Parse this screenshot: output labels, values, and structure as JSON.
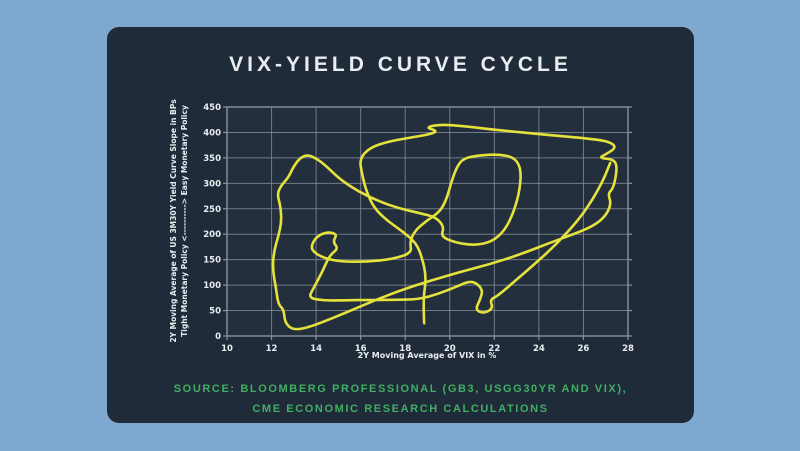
{
  "colors": {
    "background": "#7fa8d1",
    "card": "#1f2b39",
    "plot_background": "#242f3e",
    "grid": "#8a93a0",
    "axis_text": "#e9edf1",
    "curve": "#e5e33b",
    "source_text": "#41ae63",
    "title_text": "#e9edf1"
  },
  "card": {
    "title": "VIX-YIELD CURVE CYCLE"
  },
  "source": {
    "line1": "SOURCE: BLOOMBERG PROFESSIONAL (GB3, USGG30YR AND VIX),",
    "line2": "CME ECONOMIC RESEARCH CALCULATIONS"
  },
  "chart_data": {
    "type": "line",
    "title": "VIX-YIELD CURVE CYCLE",
    "xlabel": "2Y Moving Average of VIX in %",
    "ylabel_line1": "2Y Moving Average of US 3M30Y Yield Curve Slope in BPs",
    "ylabel_line2": "Tight Monetary Policy <----------> Easy Monetary Policy",
    "xlim": [
      10,
      28
    ],
    "ylim": [
      0,
      450
    ],
    "xticks": [
      10,
      12,
      14,
      16,
      18,
      20,
      22,
      24,
      26,
      28
    ],
    "yticks": [
      0,
      50,
      100,
      150,
      200,
      250,
      300,
      350,
      400,
      450
    ],
    "grid": true,
    "legend": "none",
    "series": [
      {
        "name": "VIX-Yield Curve Cycle path",
        "color": "#e5e33b",
        "points": [
          [
            18.85,
            25
          ],
          [
            18.8,
            70
          ],
          [
            18.95,
            115
          ],
          [
            18.75,
            155
          ],
          [
            18.5,
            182
          ],
          [
            17.9,
            205
          ],
          [
            17.15,
            228
          ],
          [
            16.6,
            252
          ],
          [
            16.25,
            285
          ],
          [
            16.05,
            320
          ],
          [
            15.95,
            348
          ],
          [
            16.4,
            370
          ],
          [
            17.3,
            383
          ],
          [
            18.4,
            391
          ],
          [
            19.15,
            397
          ],
          [
            19.45,
            403
          ],
          [
            18.9,
            410
          ],
          [
            19.6,
            416
          ],
          [
            20.7,
            412
          ],
          [
            22.3,
            404
          ],
          [
            24.2,
            396
          ],
          [
            26.0,
            389
          ],
          [
            27.1,
            383
          ],
          [
            27.5,
            371
          ],
          [
            27.0,
            357
          ],
          [
            26.7,
            350
          ],
          [
            27.35,
            347
          ],
          [
            27.5,
            335
          ],
          [
            27.45,
            310
          ],
          [
            27.3,
            288
          ],
          [
            27.1,
            280
          ],
          [
            27.25,
            260
          ],
          [
            27.0,
            236
          ],
          [
            26.5,
            218
          ],
          [
            25.85,
            205
          ],
          [
            24.6,
            185
          ],
          [
            23.2,
            161
          ],
          [
            21.8,
            141
          ],
          [
            20.4,
            125
          ],
          [
            19.0,
            107
          ],
          [
            17.6,
            87
          ],
          [
            16.2,
            62
          ],
          [
            14.8,
            36
          ],
          [
            13.6,
            16
          ],
          [
            12.95,
            12
          ],
          [
            12.6,
            26
          ],
          [
            12.55,
            52
          ],
          [
            12.3,
            62
          ],
          [
            12.2,
            95
          ],
          [
            12.05,
            130
          ],
          [
            12.1,
            165
          ],
          [
            12.3,
            195
          ],
          [
            12.45,
            225
          ],
          [
            12.4,
            255
          ],
          [
            12.25,
            280
          ],
          [
            12.45,
            297
          ],
          [
            12.75,
            311
          ],
          [
            13.0,
            334
          ],
          [
            13.3,
            351
          ],
          [
            13.65,
            356
          ],
          [
            14.05,
            348
          ],
          [
            14.45,
            334
          ],
          [
            15.1,
            307
          ],
          [
            15.9,
            284
          ],
          [
            16.8,
            265
          ],
          [
            17.7,
            251
          ],
          [
            18.7,
            241
          ],
          [
            19.4,
            233
          ],
          [
            19.75,
            214
          ],
          [
            19.6,
            195
          ],
          [
            20.3,
            183
          ],
          [
            21.1,
            178
          ],
          [
            21.9,
            185
          ],
          [
            22.5,
            209
          ],
          [
            22.9,
            247
          ],
          [
            23.15,
            289
          ],
          [
            23.2,
            329
          ],
          [
            22.9,
            351
          ],
          [
            22.2,
            357
          ],
          [
            21.3,
            355
          ],
          [
            20.6,
            349
          ],
          [
            20.3,
            331
          ],
          [
            20.05,
            300
          ],
          [
            19.85,
            268
          ],
          [
            19.55,
            244
          ],
          [
            19.0,
            228
          ],
          [
            18.45,
            208
          ],
          [
            18.2,
            185
          ],
          [
            18.3,
            163
          ],
          [
            17.4,
            151
          ],
          [
            16.3,
            146
          ],
          [
            15.2,
            146
          ],
          [
            14.5,
            151
          ],
          [
            14.0,
            161
          ],
          [
            13.75,
            174
          ],
          [
            14.0,
            195
          ],
          [
            14.5,
            205
          ],
          [
            14.95,
            200
          ],
          [
            14.75,
            185
          ],
          [
            15.0,
            172
          ],
          [
            14.6,
            158
          ],
          [
            14.3,
            128
          ],
          [
            13.9,
            95
          ],
          [
            13.65,
            75
          ],
          [
            14.3,
            70
          ],
          [
            15.3,
            70
          ],
          [
            16.4,
            71
          ],
          [
            17.5,
            71
          ],
          [
            18.6,
            72
          ],
          [
            19.5,
            83
          ],
          [
            20.3,
            97
          ],
          [
            21.0,
            110
          ],
          [
            21.5,
            92
          ],
          [
            21.35,
            70
          ],
          [
            21.15,
            52
          ],
          [
            21.5,
            44
          ],
          [
            21.95,
            54
          ],
          [
            21.8,
            71
          ],
          [
            22.15,
            79
          ],
          [
            22.9,
            107
          ],
          [
            23.8,
            141
          ],
          [
            24.8,
            181
          ],
          [
            25.7,
            224
          ],
          [
            26.4,
            267
          ],
          [
            26.9,
            307
          ],
          [
            27.2,
            340
          ]
        ]
      }
    ]
  }
}
